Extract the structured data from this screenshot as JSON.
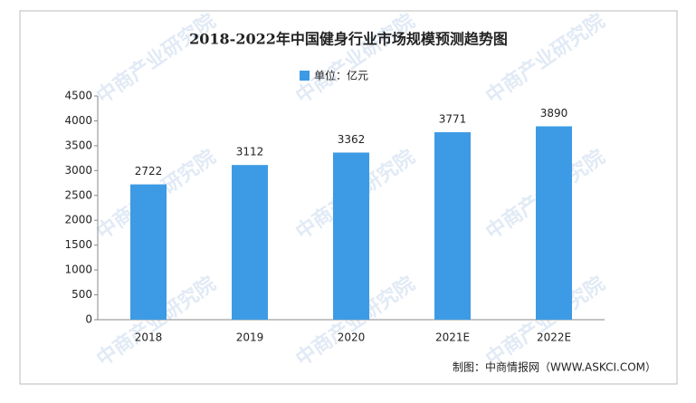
{
  "chart_data": {
    "type": "bar",
    "title": "2018-2022年中国健身行业市场规模预测趋势图",
    "categories": [
      "2018",
      "2019",
      "2020",
      "2021E",
      "2022E"
    ],
    "series": [
      {
        "name": "单位：亿元",
        "color": "#3d9be5",
        "values": [
          2722,
          3112,
          3362,
          3771,
          3890
        ]
      }
    ],
    "ylim": [
      0,
      4500
    ],
    "yticks": [
      0,
      500,
      1000,
      1500,
      2000,
      2500,
      3000,
      3500,
      4000,
      4500
    ],
    "grid": false,
    "data_labels": true,
    "source": "制图：中商情报网（WWW.ASKCI.COM）",
    "watermark": "中商产业研究院"
  }
}
